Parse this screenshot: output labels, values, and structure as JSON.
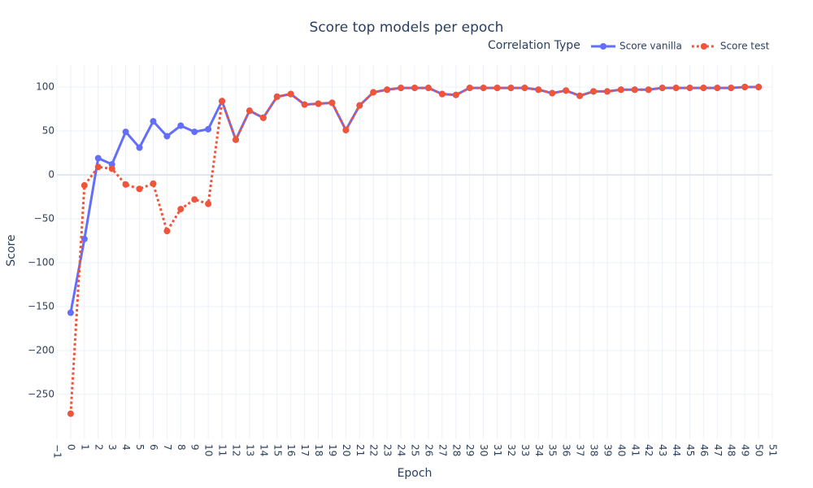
{
  "chart_data": {
    "type": "line",
    "title": "Score top models per epoch",
    "x_label": "Epoch",
    "y_label": "Score",
    "legend_title": "Correlation Type",
    "legend_position": "top-right",
    "grid": true,
    "x": [
      0,
      1,
      2,
      3,
      4,
      5,
      6,
      7,
      8,
      9,
      10,
      11,
      12,
      13,
      14,
      15,
      16,
      17,
      18,
      19,
      20,
      21,
      22,
      23,
      24,
      25,
      26,
      27,
      28,
      29,
      30,
      31,
      32,
      33,
      34,
      35,
      36,
      37,
      38,
      39,
      40,
      41,
      42,
      43,
      44,
      45,
      46,
      47,
      48,
      49,
      50
    ],
    "series": [
      {
        "name": "Score vanilla",
        "color": "#636efa",
        "dash": "solid",
        "values": [
          -157,
          -73,
          19,
          12,
          49,
          31,
          61,
          44,
          56,
          49,
          52,
          84,
          40,
          73,
          65,
          89,
          92,
          80,
          81,
          82,
          51,
          79,
          94,
          97,
          99,
          99,
          99,
          92,
          91,
          99,
          99,
          99,
          99,
          99,
          97,
          93,
          96,
          90,
          95,
          95,
          97,
          97,
          97,
          99,
          99,
          99,
          99,
          99,
          99,
          100,
          100
        ]
      },
      {
        "name": "Score test",
        "color": "#ef553b",
        "dash": "dot",
        "values": [
          -272,
          -12,
          9,
          7,
          -11,
          -16,
          -10,
          -64,
          -39,
          -28,
          -33,
          84,
          40,
          73,
          65,
          89,
          92,
          80,
          81,
          82,
          51,
          79,
          94,
          97,
          99,
          99,
          99,
          92,
          91,
          99,
          99,
          99,
          99,
          99,
          97,
          93,
          96,
          90,
          95,
          95,
          97,
          97,
          97,
          99,
          99,
          99,
          99,
          99,
          99,
          100,
          100
        ]
      }
    ],
    "xlim": [
      -1,
      51
    ],
    "xticks": [
      {
        "value": -1,
        "label": "−1"
      },
      0,
      1,
      2,
      3,
      4,
      5,
      6,
      7,
      8,
      9,
      10,
      11,
      12,
      13,
      14,
      15,
      16,
      17,
      18,
      19,
      20,
      21,
      22,
      23,
      24,
      25,
      26,
      27,
      28,
      29,
      30,
      31,
      32,
      33,
      34,
      35,
      36,
      37,
      38,
      39,
      40,
      41,
      42,
      43,
      44,
      45,
      46,
      47,
      48,
      49,
      50,
      51
    ],
    "ylim": [
      -301,
      125
    ],
    "yticks": [
      {
        "value": -250,
        "label": "−250"
      },
      {
        "value": -200,
        "label": "−200"
      },
      {
        "value": -150,
        "label": "−150"
      },
      {
        "value": -100,
        "label": "−100"
      },
      {
        "value": -50,
        "label": "−50"
      },
      0,
      50,
      100
    ]
  }
}
